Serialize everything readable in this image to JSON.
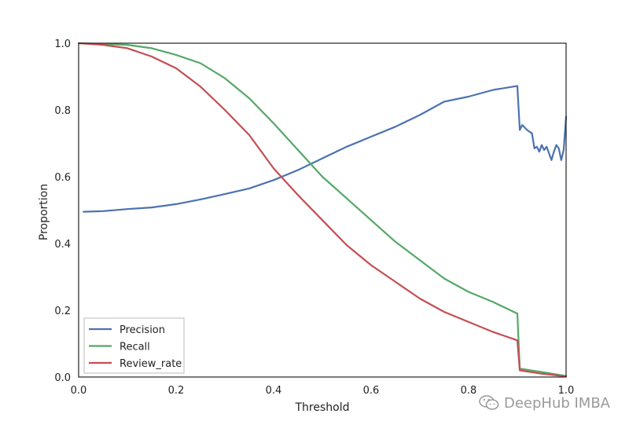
{
  "chart_data": {
    "type": "line",
    "xlabel": "Threshold",
    "ylabel": "Proportion",
    "xlim": [
      0.0,
      1.0
    ],
    "ylim": [
      0.0,
      1.0
    ],
    "xticks": [
      "0.0",
      "0.2",
      "0.4",
      "0.6",
      "0.8",
      "1.0"
    ],
    "yticks": [
      "0.0",
      "0.2",
      "0.4",
      "0.6",
      "0.8",
      "1.0"
    ],
    "grid": false,
    "legend_position": "lower-left",
    "series": [
      {
        "name": "Precision",
        "color": "#4c72b0",
        "x": [
          0.01,
          0.05,
          0.1,
          0.15,
          0.2,
          0.25,
          0.3,
          0.35,
          0.4,
          0.45,
          0.5,
          0.55,
          0.6,
          0.65,
          0.7,
          0.75,
          0.8,
          0.85,
          0.9,
          0.905,
          0.91,
          0.92,
          0.93,
          0.935,
          0.94,
          0.945,
          0.95,
          0.955,
          0.96,
          0.965,
          0.97,
          0.975,
          0.98,
          0.985,
          0.99,
          0.995,
          1.0
        ],
        "y": [
          0.495,
          0.497,
          0.503,
          0.508,
          0.518,
          0.532,
          0.548,
          0.565,
          0.59,
          0.62,
          0.655,
          0.69,
          0.72,
          0.75,
          0.785,
          0.825,
          0.84,
          0.86,
          0.872,
          0.74,
          0.755,
          0.74,
          0.73,
          0.685,
          0.69,
          0.675,
          0.695,
          0.68,
          0.69,
          0.67,
          0.65,
          0.675,
          0.695,
          0.685,
          0.65,
          0.68,
          0.78
        ]
      },
      {
        "name": "Recall",
        "color": "#55a868",
        "x": [
          0.0,
          0.05,
          0.1,
          0.15,
          0.2,
          0.25,
          0.3,
          0.35,
          0.4,
          0.45,
          0.5,
          0.55,
          0.6,
          0.65,
          0.7,
          0.75,
          0.8,
          0.85,
          0.9,
          0.905,
          0.95,
          1.0
        ],
        "y": [
          1.0,
          0.998,
          0.995,
          0.985,
          0.965,
          0.94,
          0.895,
          0.835,
          0.76,
          0.68,
          0.6,
          0.535,
          0.47,
          0.405,
          0.35,
          0.295,
          0.255,
          0.225,
          0.19,
          0.025,
          0.015,
          0.003
        ]
      },
      {
        "name": "Review_rate",
        "color": "#c44e52",
        "x": [
          0.0,
          0.05,
          0.1,
          0.15,
          0.2,
          0.25,
          0.3,
          0.35,
          0.4,
          0.45,
          0.5,
          0.55,
          0.6,
          0.65,
          0.7,
          0.75,
          0.8,
          0.85,
          0.9,
          0.905,
          0.95,
          1.0
        ],
        "y": [
          1.0,
          0.995,
          0.985,
          0.96,
          0.925,
          0.87,
          0.8,
          0.725,
          0.625,
          0.545,
          0.47,
          0.395,
          0.335,
          0.285,
          0.235,
          0.195,
          0.165,
          0.135,
          0.11,
          0.02,
          0.01,
          0.002
        ]
      }
    ]
  },
  "watermark": {
    "text": "DeepHub IMBA",
    "icon": "wechat-icon"
  }
}
